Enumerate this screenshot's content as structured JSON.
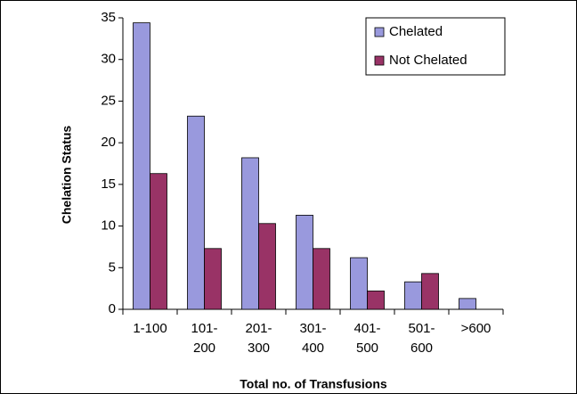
{
  "chart_data": {
    "type": "bar",
    "x_label": "Total no. of Transfusions",
    "y_label": "Chelation Status",
    "categories": [
      "1-100",
      "101-\n200",
      "201-\n300",
      "301-\n400",
      "401-\n500",
      "501-\n600",
      ">600"
    ],
    "series": [
      {
        "name": "Chelated",
        "color": "#9999dd",
        "values": [
          34.4,
          23.2,
          18.2,
          11.3,
          6.2,
          3.3,
          1.3
        ]
      },
      {
        "name": "Not Chelated",
        "color": "#993366",
        "values": [
          16.3,
          7.3,
          10.3,
          7.3,
          2.2,
          4.3,
          null
        ]
      }
    ],
    "ylim": [
      0,
      35
    ],
    "yticks": [
      0,
      5,
      10,
      15,
      20,
      25,
      30,
      35
    ],
    "grid": false,
    "legend": "upper right"
  }
}
